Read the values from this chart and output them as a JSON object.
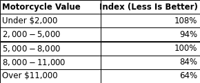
{
  "col1_header": "Motorcycle Value",
  "col2_header": "Index (Less Is Better)",
  "rows": [
    [
      "Under $2,000",
      "108%"
    ],
    [
      "$2,000 - $5,000",
      "94%"
    ],
    [
      "$5,000 - $8,000",
      "100%"
    ],
    [
      "$8,000 - $11,000",
      "84%"
    ],
    [
      "Over $11,000",
      "64%"
    ]
  ],
  "bg_color": "#ffffff",
  "border_color": "#000000",
  "text_color": "#000000",
  "font_size": 8.5,
  "header_font_size": 8.5,
  "col_split": 0.505,
  "fig_width": 2.9,
  "fig_height": 1.21,
  "dpi": 100
}
